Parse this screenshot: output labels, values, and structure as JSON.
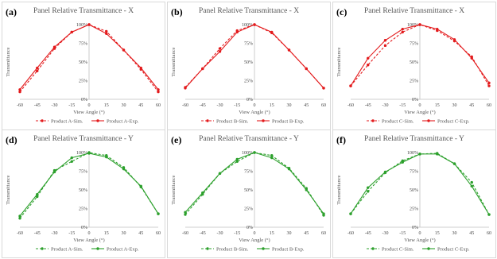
{
  "chart_data": [
    {
      "type": "line",
      "label": "(a)",
      "title": "Panel Relative Transmittance - X",
      "xlabel": "View Angle (°)",
      "ylabel": "Transmittance",
      "color": "#e31a1c",
      "x": [
        -60,
        -45,
        -30,
        -15,
        0,
        15,
        30,
        45,
        60
      ],
      "xticks": [
        "-60",
        "-45",
        "-30",
        "-15",
        "0",
        "15",
        "30",
        "45",
        "60"
      ],
      "yticks": [
        "0%",
        "25%",
        "50%",
        "75%",
        "100%"
      ],
      "ylim": [
        0,
        100
      ],
      "series": [
        {
          "name": "Product A-Sim.",
          "style": "dashed",
          "values": [
            10,
            38,
            68,
            90,
            100,
            91,
            66,
            40,
            10
          ]
        },
        {
          "name": "Product A-Exp.",
          "style": "solid",
          "values": [
            13,
            42,
            70,
            90,
            100,
            88,
            66,
            42,
            13
          ]
        }
      ]
    },
    {
      "type": "line",
      "label": "(b)",
      "title": "Panel Relative Transmittance - X",
      "xlabel": "View Angle (°)",
      "ylabel": "Transmittance",
      "color": "#e31a1c",
      "x": [
        -60,
        -45,
        -30,
        -15,
        0,
        15,
        30,
        45,
        60
      ],
      "xticks": [
        "-60",
        "-45",
        "-30",
        "-15",
        "0",
        "15",
        "30",
        "45",
        "60"
      ],
      "yticks": [
        "0%",
        "25%",
        "50%",
        "75%",
        "100%"
      ],
      "ylim": [
        0,
        100
      ],
      "series": [
        {
          "name": "Product B-Sim.",
          "style": "dashed",
          "values": [
            16,
            41,
            68,
            92,
            100,
            89,
            66,
            41,
            15
          ]
        },
        {
          "name": "Product B-Exp.",
          "style": "solid",
          "values": [
            15,
            41,
            64,
            90,
            100,
            90,
            66,
            41,
            15
          ]
        }
      ]
    },
    {
      "type": "line",
      "label": "(c)",
      "title": "Panel Relative Transmittance - X",
      "xlabel": "View Angle (°)",
      "ylabel": "Transmittance",
      "color": "#e31a1c",
      "x": [
        -60,
        -45,
        -30,
        -15,
        0,
        15,
        30,
        45,
        60
      ],
      "xticks": [
        "-60",
        "-45",
        "-30",
        "-15",
        "0",
        "15",
        "30",
        "45",
        "60"
      ],
      "yticks": [
        "0%",
        "25%",
        "50%",
        "75%",
        "100%"
      ],
      "ylim": [
        0,
        100
      ],
      "series": [
        {
          "name": "Product C-Sim.",
          "style": "dashed",
          "values": [
            18,
            46,
            72,
            90,
            100,
            92,
            78,
            57,
            18
          ]
        },
        {
          "name": "Product C-Exp.",
          "style": "solid",
          "values": [
            18,
            55,
            79,
            94,
            100,
            94,
            80,
            55,
            22
          ]
        }
      ]
    },
    {
      "type": "line",
      "label": "(d)",
      "title": "Panel Relative Transmittance - Y",
      "xlabel": "View Angle (°)",
      "ylabel": "Transmittance",
      "color": "#2ca02c",
      "x": [
        -60,
        -45,
        -30,
        -15,
        0,
        15,
        30,
        45,
        60
      ],
      "xticks": [
        "-60",
        "-45",
        "-30",
        "-15",
        "0",
        "15",
        "30",
        "45",
        "60"
      ],
      "yticks": [
        "0%",
        "25%",
        "50%",
        "75%",
        "100%"
      ],
      "ylim": [
        0,
        100
      ],
      "series": [
        {
          "name": "Product A-Sim.",
          "style": "dashed",
          "values": [
            12,
            41,
            76,
            88,
            100,
            96,
            80,
            54,
            18
          ]
        },
        {
          "name": "Product A-Exp.",
          "style": "solid",
          "values": [
            15,
            44,
            74,
            93,
            99,
            94,
            78,
            55,
            18
          ]
        }
      ]
    },
    {
      "type": "line",
      "label": "(e)",
      "title": "Panel Relative Transmittance - Y",
      "xlabel": "View Angle (°)",
      "ylabel": "Transmittance",
      "color": "#2ca02c",
      "x": [
        -60,
        -45,
        -30,
        -15,
        0,
        15,
        30,
        45,
        60
      ],
      "xticks": [
        "-60",
        "-45",
        "-30",
        "-15",
        "0",
        "15",
        "30",
        "45",
        "60"
      ],
      "yticks": [
        "0%",
        "25%",
        "50%",
        "75%",
        "100%"
      ],
      "ylim": [
        0,
        100
      ],
      "series": [
        {
          "name": "Product B-Sim.",
          "style": "dashed",
          "values": [
            17,
            44,
            72,
            88,
            100,
            96,
            79,
            52,
            16
          ]
        },
        {
          "name": "Product B-Exp.",
          "style": "solid",
          "values": [
            20,
            46,
            72,
            91,
            100,
            93,
            78,
            50,
            18
          ]
        }
      ]
    },
    {
      "type": "line",
      "label": "(f)",
      "title": "Panel Relative Transmittance - Y",
      "xlabel": "View Angle (°)",
      "ylabel": "Transmittance",
      "color": "#2ca02c",
      "x": [
        -60,
        -45,
        -30,
        -15,
        0,
        15,
        30,
        45,
        60
      ],
      "xticks": [
        "-60",
        "-45",
        "-30",
        "-15",
        "0",
        "15",
        "30",
        "45",
        "60"
      ],
      "yticks": [
        "0%",
        "25%",
        "50%",
        "75%",
        "100%"
      ],
      "ylim": [
        0,
        100
      ],
      "series": [
        {
          "name": "Product C-Sim.",
          "style": "dashed",
          "values": [
            18,
            48,
            73,
            89,
            98,
            99,
            85,
            60,
            17
          ]
        },
        {
          "name": "Product C-Exp.",
          "style": "solid",
          "values": [
            18,
            53,
            74,
            87,
            98,
            98,
            85,
            55,
            17
          ]
        }
      ]
    }
  ]
}
